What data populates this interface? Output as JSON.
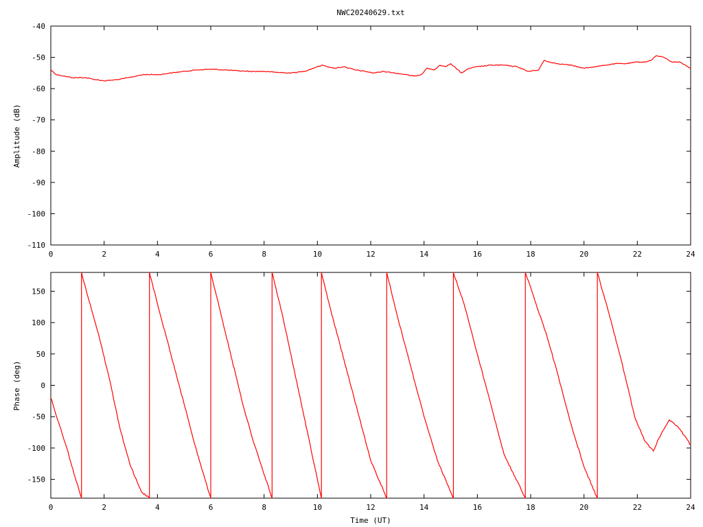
{
  "title": "NWC20240629.txt",
  "colors": {
    "series": "#ff0000",
    "frame": "#000000",
    "background": "#ffffff"
  },
  "chart_data": [
    {
      "type": "line",
      "ylabel": "Amplitude (dB)",
      "xlabel": "",
      "xlim": [
        0,
        24
      ],
      "ylim": [
        -110,
        -40
      ],
      "xticks": [
        "0",
        "2",
        "4",
        "6",
        "8",
        "10",
        "12",
        "14",
        "16",
        "18",
        "20",
        "22",
        "24"
      ],
      "yticks": [
        "-40",
        "-50",
        "-60",
        "-70",
        "-80",
        "-90",
        "-100",
        "-110"
      ],
      "grid": false,
      "series": [
        {
          "x": [
            0,
            0.2,
            0.5,
            0.8,
            1.0,
            1.3,
            1.6,
            2.0,
            2.3,
            2.6,
            2.9,
            3.2,
            3.5,
            3.8,
            4.1,
            4.5,
            5.0,
            5.5,
            6.0,
            6.5,
            7.0,
            7.5,
            8.0,
            8.5,
            9.0,
            9.5,
            10.0,
            10.2,
            10.6,
            11.0,
            11.4,
            11.8,
            12.1,
            12.5,
            12.9,
            13.3,
            13.6,
            13.9,
            14.1,
            14.4,
            14.6,
            14.8,
            15.0,
            15.2,
            15.4,
            15.7,
            16.0,
            16.5,
            17.0,
            17.5,
            17.9,
            18.3,
            18.5,
            18.7,
            19.0,
            19.5,
            20.0,
            20.4,
            20.8,
            21.2,
            21.6,
            22.0,
            22.3,
            22.5,
            22.7,
            23.0,
            23.3,
            23.6,
            24.0
          ],
          "y": [
            -54,
            -55.5,
            -56,
            -56.5,
            -56.5,
            -56.5,
            -57,
            -57.5,
            -57.3,
            -57,
            -56.5,
            -56,
            -55.5,
            -55.5,
            -55.5,
            -55,
            -54.5,
            -54,
            -53.8,
            -54,
            -54.3,
            -54.5,
            -54.5,
            -54.8,
            -55,
            -54.5,
            -53,
            -52.5,
            -53.5,
            -53,
            -54,
            -54.5,
            -55,
            -54.5,
            -55,
            -55.5,
            -56,
            -55.5,
            -53.5,
            -54,
            -52.5,
            -53,
            -52,
            -53.5,
            -55,
            -53.5,
            -53,
            -52.5,
            -52.5,
            -53,
            -54.5,
            -54,
            -51,
            -51.5,
            -52,
            -52.5,
            -53.5,
            -53,
            -52.5,
            -52,
            -52,
            -51.5,
            -51.5,
            -51,
            -49.5,
            -50,
            -51.5,
            -51.5,
            -53.5
          ]
        }
      ]
    },
    {
      "type": "line",
      "ylabel": "Phase (deg)",
      "xlabel": "Time (UT)",
      "xlim": [
        0,
        24
      ],
      "ylim": [
        -180,
        180
      ],
      "xticks": [
        "0",
        "2",
        "4",
        "6",
        "8",
        "10",
        "12",
        "14",
        "16",
        "18",
        "20",
        "22",
        "24"
      ],
      "yticks": [
        "150",
        "100",
        "50",
        "0",
        "-50",
        "-100",
        "-150"
      ],
      "grid": false,
      "series": [
        {
          "x": [
            0,
            0.3,
            0.6,
            0.9,
            1.15,
            1.15,
            1.4,
            1.8,
            2.2,
            2.6,
            3.0,
            3.4,
            3.7,
            3.7,
            4.0,
            4.5,
            5.0,
            5.5,
            6.0,
            6.0,
            6.4,
            6.8,
            7.2,
            7.6,
            8.3,
            8.3,
            8.7,
            9.1,
            9.5,
            9.9,
            10.15,
            10.15,
            10.5,
            11.0,
            11.5,
            12.0,
            12.6,
            12.6,
            13.0,
            13.5,
            14.0,
            14.5,
            15.1,
            15.1,
            15.5,
            16.0,
            16.5,
            17.0,
            17.8,
            17.8,
            18.2,
            18.6,
            19.0,
            19.5,
            20.0,
            20.5,
            20.5,
            20.9,
            21.4,
            21.9,
            22.3,
            22.6,
            22.8,
            23.0,
            23.2,
            23.6,
            24.0
          ],
          "y": [
            -20,
            -60,
            -100,
            -145,
            -180,
            180,
            140,
            80,
            10,
            -70,
            -130,
            -170,
            -180,
            180,
            130,
            50,
            -30,
            -110,
            -180,
            180,
            110,
            40,
            -30,
            -90,
            -180,
            180,
            110,
            30,
            -50,
            -130,
            -180,
            180,
            120,
            40,
            -40,
            -120,
            -180,
            180,
            110,
            30,
            -50,
            -120,
            -180,
            180,
            130,
            50,
            -30,
            -110,
            -180,
            180,
            130,
            80,
            20,
            -60,
            -130,
            -180,
            180,
            120,
            40,
            -50,
            -90,
            -105,
            -85,
            -70,
            -55,
            -70,
            -95
          ]
        }
      ]
    }
  ]
}
